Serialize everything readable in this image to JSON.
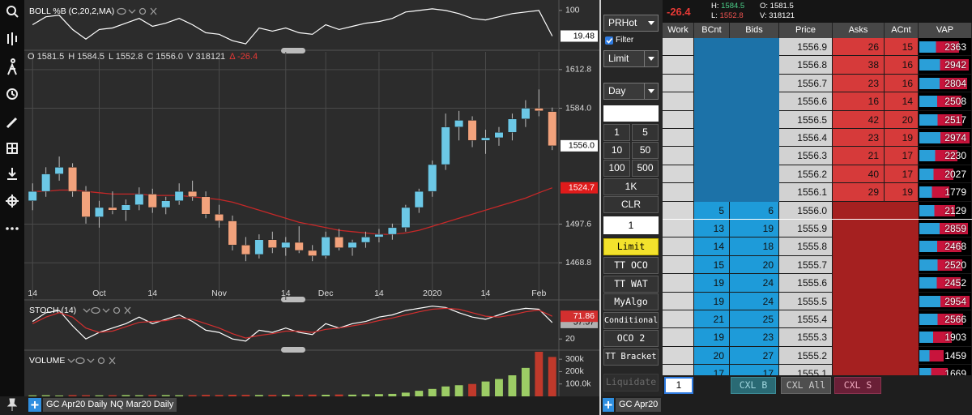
{
  "chart_data": [
    {
      "type": "line",
      "title": "BOLL %B (C,20,2,MA)",
      "color": "#ffffff",
      "values": [
        55,
        80,
        85,
        40,
        10,
        40,
        45,
        60,
        75,
        50,
        60,
        75,
        55,
        30,
        25,
        5,
        -5,
        45,
        35,
        45,
        30,
        25,
        55,
        40,
        50,
        60,
        65,
        75,
        95,
        100,
        105,
        100,
        90,
        75,
        70,
        80,
        90,
        95,
        100,
        19.48
      ],
      "ylim": [
        -20,
        120
      ],
      "yticks": [
        100
      ]
    },
    {
      "type": "candlestick",
      "header": [
        {
          "label": "O",
          "value": "1581.5"
        },
        {
          "label": "H",
          "value": "1584.5"
        },
        {
          "label": "L",
          "value": "1552.8"
        },
        {
          "label": "C",
          "value": "1556.0"
        },
        {
          "label": "V",
          "value": "318121"
        },
        {
          "label": "Δ",
          "value": "-26.4"
        }
      ],
      "categories": [
        "14",
        null,
        null,
        null,
        null,
        "Oct",
        null,
        null,
        null,
        "14",
        null,
        null,
        null,
        null,
        "Nov",
        null,
        null,
        null,
        null,
        "14",
        null,
        null,
        "Dec",
        null,
        null,
        null,
        "14",
        null,
        null,
        null,
        "2020",
        null,
        null,
        null,
        "14",
        null,
        null,
        null,
        "Feb",
        null
      ],
      "open": [
        1515,
        1522,
        1535,
        1540,
        1522,
        1503,
        1510,
        1508,
        1512,
        1520,
        1510,
        1515,
        1522,
        1518,
        1505,
        1500,
        1482,
        1475,
        1486,
        1480,
        1484,
        1478,
        1474,
        1488,
        1480,
        1484,
        1488,
        1490,
        1495,
        1510,
        1522,
        1542,
        1570,
        1575,
        1560,
        1562,
        1566,
        1576,
        1584,
        1581.5
      ],
      "high": [
        1528,
        1540,
        1548,
        1543,
        1526,
        1515,
        1522,
        1516,
        1525,
        1524,
        1518,
        1528,
        1530,
        1522,
        1512,
        1504,
        1488,
        1490,
        1492,
        1488,
        1496,
        1482,
        1492,
        1494,
        1486,
        1492,
        1494,
        1498,
        1512,
        1524,
        1545,
        1580,
        1582,
        1578,
        1568,
        1570,
        1580,
        1590,
        1598,
        1584.5
      ],
      "low": [
        1508,
        1518,
        1530,
        1518,
        1498,
        1495,
        1505,
        1500,
        1508,
        1506,
        1505,
        1512,
        1515,
        1502,
        1495,
        1478,
        1470,
        1472,
        1476,
        1474,
        1476,
        1470,
        1472,
        1478,
        1474,
        1480,
        1484,
        1486,
        1492,
        1506,
        1518,
        1538,
        1560,
        1555,
        1550,
        1556,
        1560,
        1570,
        1578,
        1552.8
      ],
      "close": [
        1522,
        1535,
        1540,
        1522,
        1503,
        1510,
        1508,
        1512,
        1520,
        1510,
        1515,
        1522,
        1518,
        1505,
        1500,
        1482,
        1475,
        1486,
        1480,
        1484,
        1478,
        1474,
        1488,
        1480,
        1484,
        1488,
        1490,
        1495,
        1510,
        1522,
        1542,
        1570,
        1575,
        1560,
        1562,
        1566,
        1576,
        1584,
        1582,
        1556
      ],
      "up_color": "#6cc8e6",
      "down_color": "#f2a27c",
      "ma": {
        "color": "#c62828",
        "values": [
          1522,
          1522,
          1523,
          1523,
          1522,
          1521,
          1520,
          1520,
          1520,
          1519,
          1519,
          1519,
          1518,
          1517,
          1516,
          1514,
          1511,
          1508,
          1505,
          1502,
          1499,
          1497,
          1495,
          1493,
          1492,
          1491,
          1490,
          1490,
          1491,
          1493,
          1496,
          1499,
          1502,
          1505,
          1508,
          1511,
          1514,
          1517,
          1521,
          1524.7
        ]
      },
      "price_marker": {
        "value": 1556,
        "label": "1556.0"
      },
      "ylim": [
        1452,
        1626
      ],
      "yticks": [
        1612.8,
        {
          "value": 1584,
          "label": "1584.0"
        },
        1497.6,
        1468.8
      ],
      "grid": true
    },
    {
      "type": "line",
      "title": "STOCH (14)",
      "series": [
        {
          "color": "#ffffff",
          "values": [
            60,
            80,
            85,
            50,
            20,
            35,
            45,
            55,
            70,
            55,
            65,
            75,
            60,
            40,
            35,
            20,
            15,
            40,
            35,
            45,
            35,
            30,
            55,
            45,
            55,
            60,
            70,
            75,
            85,
            90,
            95,
            92,
            80,
            70,
            65,
            75,
            85,
            90,
            88,
            57.57
          ]
        },
        {
          "color": "#d32f2f",
          "values": [
            55,
            70,
            80,
            70,
            45,
            35,
            38,
            48,
            58,
            60,
            62,
            68,
            65,
            55,
            45,
            32,
            22,
            28,
            32,
            38,
            38,
            35,
            42,
            45,
            50,
            55,
            62,
            68,
            75,
            82,
            88,
            90,
            88,
            80,
            72,
            70,
            75,
            82,
            86,
            71.86
          ]
        }
      ],
      "ylim": [
        0,
        100
      ],
      "yticks": [
        20
      ]
    },
    {
      "type": "bar",
      "title": "VOLUME",
      "up_color": "#9ccc65",
      "down_color": "#c0392b",
      "values": [
        8000,
        9000,
        7000,
        10000,
        9000,
        8000,
        9000,
        10000,
        9000,
        11000,
        10000,
        9000,
        10000,
        12000,
        11000,
        13000,
        12000,
        11000,
        12000,
        13000,
        12000,
        14000,
        13000,
        15000,
        14000,
        16000,
        18000,
        20000,
        30000,
        45000,
        60000,
        80000,
        90000,
        100000,
        120000,
        140000,
        170000,
        230000,
        360000,
        318121
      ],
      "ylim": [
        0,
        360000
      ],
      "yticks": [
        {
          "value": 300000,
          "label": "300k"
        },
        {
          "value": 200000,
          "label": "200k"
        },
        {
          "value": 100000,
          "label": "100.0k"
        }
      ]
    }
  ],
  "order_ticket": {
    "account": "PRHot",
    "filter": "Filter",
    "order_type": "Limit",
    "tif": "Day",
    "qty_buttons": [
      "1",
      "5",
      "10",
      "50",
      "100",
      "500",
      "1K",
      "CLR"
    ],
    "qty": "1",
    "strategies": [
      "Limit",
      "TT OCO",
      "TT WAT",
      "MyAlgo",
      "Conditional",
      "OCO 2",
      "TT Bracket"
    ],
    "liquidate": "Liquidate"
  },
  "ladder": {
    "header": {
      "change": "-26.4",
      "high": {
        "label": "H:",
        "value": "1584.5"
      },
      "low": {
        "label": "L:",
        "value": "1552.8"
      },
      "open": {
        "label": "O:",
        "value": "1581.5"
      },
      "volume": {
        "label": "V:",
        "value": "318121"
      }
    },
    "columns": [
      "Work",
      "BCnt",
      "Bids",
      "Price",
      "Asks",
      "ACnt",
      "VAP"
    ],
    "rows": [
      {
        "price": "1556.9",
        "asks": 26,
        "acnt": 15,
        "vap": 2363
      },
      {
        "price": "1556.8",
        "asks": 38,
        "acnt": 16,
        "vap": 2942
      },
      {
        "price": "1556.7",
        "asks": 23,
        "acnt": 16,
        "vap": 2804
      },
      {
        "price": "1556.6",
        "asks": 16,
        "acnt": 14,
        "vap": 2508
      },
      {
        "price": "1556.5",
        "asks": 42,
        "acnt": 20,
        "vap": 2517
      },
      {
        "price": "1556.4",
        "asks": 23,
        "acnt": 19,
        "vap": 2974
      },
      {
        "price": "1556.3",
        "asks": 21,
        "acnt": 17,
        "vap": 2230
      },
      {
        "price": "1556.2",
        "asks": 40,
        "acnt": 17,
        "vap": 2027
      },
      {
        "price": "1556.1",
        "asks": 29,
        "acnt": 19,
        "vap": 1779
      },
      {
        "price": "1556.0",
        "bcnt": 5,
        "bids": 6,
        "vap": 2129
      },
      {
        "price": "1555.9",
        "bcnt": 13,
        "bids": 19,
        "vap": 2859
      },
      {
        "price": "1555.8",
        "bcnt": 14,
        "bids": 18,
        "vap": 2468
      },
      {
        "price": "1555.7",
        "bcnt": 15,
        "bids": 20,
        "vap": 2520
      },
      {
        "price": "1555.6",
        "bcnt": 19,
        "bids": 24,
        "vap": 2452
      },
      {
        "price": "1555.5",
        "bcnt": 19,
        "bids": 24,
        "vap": 2954
      },
      {
        "price": "1555.4",
        "bcnt": 21,
        "bids": 25,
        "vap": 2566
      },
      {
        "price": "1555.3",
        "bcnt": 19,
        "bids": 23,
        "vap": 1903
      },
      {
        "price": "1555.2",
        "bcnt": 20,
        "bids": 27,
        "vap": 1459
      },
      {
        "price": "1555.1",
        "bcnt": 17,
        "bids": 17,
        "vap": 1669
      }
    ],
    "qty": "1",
    "cancel_buttons": [
      "CXL B",
      "CXL All",
      "CXL S"
    ]
  },
  "tabs": {
    "chart": [
      "GC Apr20 Daily",
      "NQ Mar20 Daily"
    ],
    "ladder": [
      "GC Apr20"
    ]
  }
}
